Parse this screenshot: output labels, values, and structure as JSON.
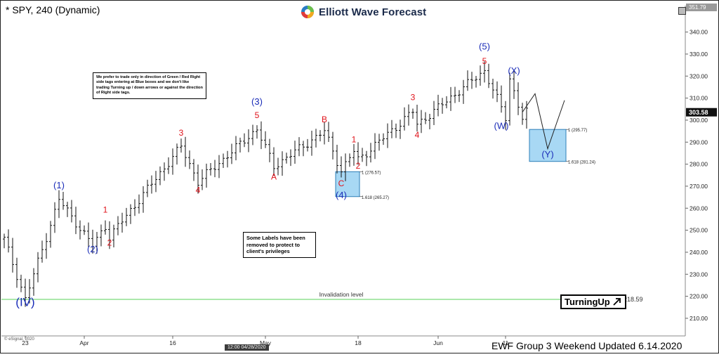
{
  "header": {
    "title": "* SPY, 240 (Dynamic)",
    "brand": "Elliott Wave Forecast",
    "current_price": "303.58",
    "top_price_label": "351.79",
    "crosshair_time": "12:00 04/28/2020",
    "esignal_credit": "© eSignal, 2020"
  },
  "notes": {
    "trade_note": "We prefer to trade only in direction of Green / Red Right side tags entering at Blue boxes and we don't like trading Turning up / down arrows or against the direction of Right side tags.",
    "labels_note": "Some Labels have been removed to protect to client's privileges"
  },
  "turning_badge": {
    "label": "TurningUp",
    "icon": "arrow-up-right-icon"
  },
  "footer": {
    "text": "EWF Group 3 Weekend Updated 6.14.2020"
  },
  "colors": {
    "wave_blue": "#1a2cb8",
    "wave_red": "#e0121a",
    "box_fill": "#a8d8f4",
    "box_stroke": "#2e7fb8",
    "invalidation": "#5ad15a",
    "price_bar": "#111111"
  },
  "chart_data": {
    "type": "ohlc-bars",
    "symbol": "SPY",
    "timeframe": "240",
    "ylim": [
      202,
      352
    ],
    "y_ticks": [
      210,
      220,
      230,
      240,
      250,
      260,
      270,
      280,
      290,
      300,
      310,
      320,
      330,
      340
    ],
    "x_ticks": [
      {
        "label": "23",
        "bar": 5
      },
      {
        "label": "Apr",
        "bar": 19
      },
      {
        "label": "16",
        "bar": 40
      },
      {
        "label": "May",
        "bar": 62
      },
      {
        "label": "18",
        "bar": 84
      },
      {
        "label": "Jun",
        "bar": 103
      },
      {
        "label": "11",
        "bar": 119
      }
    ],
    "total_bars": 164,
    "pivots": [
      {
        "bar": 0,
        "price": 246
      },
      {
        "bar": 5,
        "price": 218.6
      },
      {
        "bar": 13,
        "price": 264
      },
      {
        "bar": 21,
        "price": 243
      },
      {
        "bar": 24,
        "price": 252
      },
      {
        "bar": 25,
        "price": 247
      },
      {
        "bar": 42,
        "price": 288
      },
      {
        "bar": 46,
        "price": 272
      },
      {
        "bar": 60,
        "price": 296
      },
      {
        "bar": 64,
        "price": 279
      },
      {
        "bar": 76,
        "price": 295
      },
      {
        "bar": 80,
        "price": 277
      },
      {
        "bar": 83,
        "price": 286
      },
      {
        "bar": 84,
        "price": 282
      },
      {
        "bar": 93,
        "price": 297
      },
      {
        "bar": 97,
        "price": 304
      },
      {
        "bar": 98,
        "price": 298
      },
      {
        "bar": 114,
        "price": 322.5
      },
      {
        "bar": 119,
        "price": 301
      },
      {
        "bar": 120,
        "price": 319
      },
      {
        "bar": 123,
        "price": 301
      },
      {
        "bar": 124,
        "price": 303.6
      }
    ],
    "projection": [
      {
        "bar": 123,
        "price": 303.6
      },
      {
        "bar": 126,
        "price": 312
      },
      {
        "bar": 129,
        "price": 287
      },
      {
        "bar": 133,
        "price": 309
      }
    ],
    "wave_labels": [
      {
        "text": "(IV)",
        "bar": 5,
        "price": 215.5,
        "color": "blue",
        "size": 17
      },
      {
        "text": "(1)",
        "bar": 13,
        "price": 269,
        "color": "blue",
        "size": 13
      },
      {
        "text": "1",
        "bar": 24,
        "price": 258,
        "color": "red",
        "size": 12
      },
      {
        "text": "(2)",
        "bar": 21,
        "price": 240,
        "color": "blue",
        "size": 13
      },
      {
        "text": "2",
        "bar": 25,
        "price": 243,
        "color": "red",
        "size": 12
      },
      {
        "text": "3",
        "bar": 42,
        "price": 293,
        "color": "red",
        "size": 12
      },
      {
        "text": "4",
        "bar": 46,
        "price": 267,
        "color": "red",
        "size": 12
      },
      {
        "text": "(3)",
        "bar": 60,
        "price": 307,
        "color": "blue",
        "size": 13
      },
      {
        "text": "5",
        "bar": 60,
        "price": 301,
        "color": "red",
        "size": 12
      },
      {
        "text": "A",
        "bar": 64,
        "price": 273,
        "color": "red",
        "size": 12
      },
      {
        "text": "B",
        "bar": 76,
        "price": 299,
        "color": "red",
        "size": 12
      },
      {
        "text": "1",
        "bar": 83,
        "price": 290,
        "color": "red",
        "size": 12
      },
      {
        "text": "2",
        "bar": 84,
        "price": 278,
        "color": "red",
        "size": 12
      },
      {
        "text": "C",
        "bar": 80,
        "price": 270,
        "color": "red",
        "size": 12
      },
      {
        "text": "(4)",
        "bar": 80,
        "price": 264.5,
        "color": "blue",
        "size": 13
      },
      {
        "text": "3",
        "bar": 97,
        "price": 309,
        "color": "red",
        "size": 12
      },
      {
        "text": "4",
        "bar": 98,
        "price": 292,
        "color": "red",
        "size": 12
      },
      {
        "text": "(5)",
        "bar": 114,
        "price": 332,
        "color": "blue",
        "size": 13
      },
      {
        "text": "5",
        "bar": 114,
        "price": 325.5,
        "color": "red",
        "size": 12
      },
      {
        "text": "(X)",
        "bar": 121,
        "price": 321,
        "color": "blue",
        "size": 13
      },
      {
        "text": "(W)",
        "bar": 118,
        "price": 296,
        "color": "blue",
        "size": 13
      },
      {
        "text": "(Y)",
        "bar": 129,
        "price": 283,
        "color": "blue",
        "size": 13
      }
    ],
    "blue_boxes": [
      {
        "bar_start": 79,
        "bar_end": 84,
        "top": 276.57,
        "bottom": 265.27,
        "label_top": "1 (276.57)",
        "label_bottom": "1.618 (265.27)"
      },
      {
        "bar_start": 125,
        "bar_end": 133,
        "top": 295.77,
        "bottom": 281.24,
        "label_top": "1 (295.77)",
        "label_bottom": "1.618 (281.24)"
      }
    ],
    "invalidation": {
      "price": 218.59,
      "label": "Invalidation level",
      "value_label": "218.59"
    }
  }
}
